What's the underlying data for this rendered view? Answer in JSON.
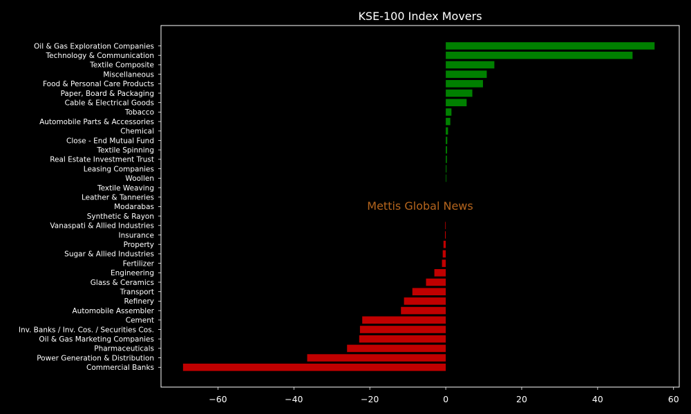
{
  "chart_data": {
    "type": "bar",
    "orientation": "horizontal",
    "title": "KSE-100 Index Movers",
    "watermark": "Mettis Global News",
    "xlabel": "",
    "ylabel": "",
    "xlim": [
      -75,
      61.5
    ],
    "xticks": [
      -60,
      -40,
      -20,
      0,
      20,
      40,
      60
    ],
    "xtick_labels": [
      "−60",
      "−40",
      "−20",
      "0",
      "20",
      "40",
      "60"
    ],
    "grid": false,
    "legend": "none",
    "categories": [
      "Oil & Gas Exploration Companies",
      "Technology & Communication",
      "Textile Composite",
      "Miscellaneous",
      "Food & Personal Care Products",
      "Paper, Board & Packaging",
      "Cable & Electrical Goods",
      "Tobacco",
      "Automobile Parts & Accessories",
      "Chemical",
      "Close - End Mutual Fund",
      "Textile Spinning",
      "Real Estate Investment Trust",
      "Leasing Companies",
      "Woollen",
      "Textile Weaving",
      "Leather & Tanneries",
      "Modarabas",
      "Synthetic & Rayon",
      "Vanaspati & Allied Industries",
      "Insurance",
      "Property",
      "Sugar & Allied Industries",
      "Fertilizer",
      "Engineering",
      "Glass & Ceramics",
      "Transport",
      "Refinery",
      "Automobile Assembler",
      "Cement",
      "Inv. Banks / Inv. Cos. / Securities Cos.",
      "Oil & Gas Marketing Companies",
      "Pharmaceuticals",
      "Power Generation & Distribution",
      "Commercial Banks"
    ],
    "values": [
      55.0,
      49.2,
      12.8,
      10.8,
      9.8,
      7.0,
      5.5,
      1.5,
      1.2,
      0.6,
      0.4,
      0.35,
      0.3,
      0.2,
      0.15,
      0.0,
      0.0,
      0.0,
      0.0,
      -0.15,
      -0.2,
      -0.6,
      -0.8,
      -1.0,
      -3.0,
      -5.2,
      -8.8,
      -11.0,
      -11.8,
      -22.0,
      -22.6,
      -22.8,
      -26.0,
      -36.5,
      -69.2
    ],
    "colors": {
      "positive": "#008000",
      "negative": "#c00000",
      "background": "#000000",
      "axes": "#ffffff",
      "text": "#ffffff",
      "watermark": "#b5651d"
    }
  }
}
